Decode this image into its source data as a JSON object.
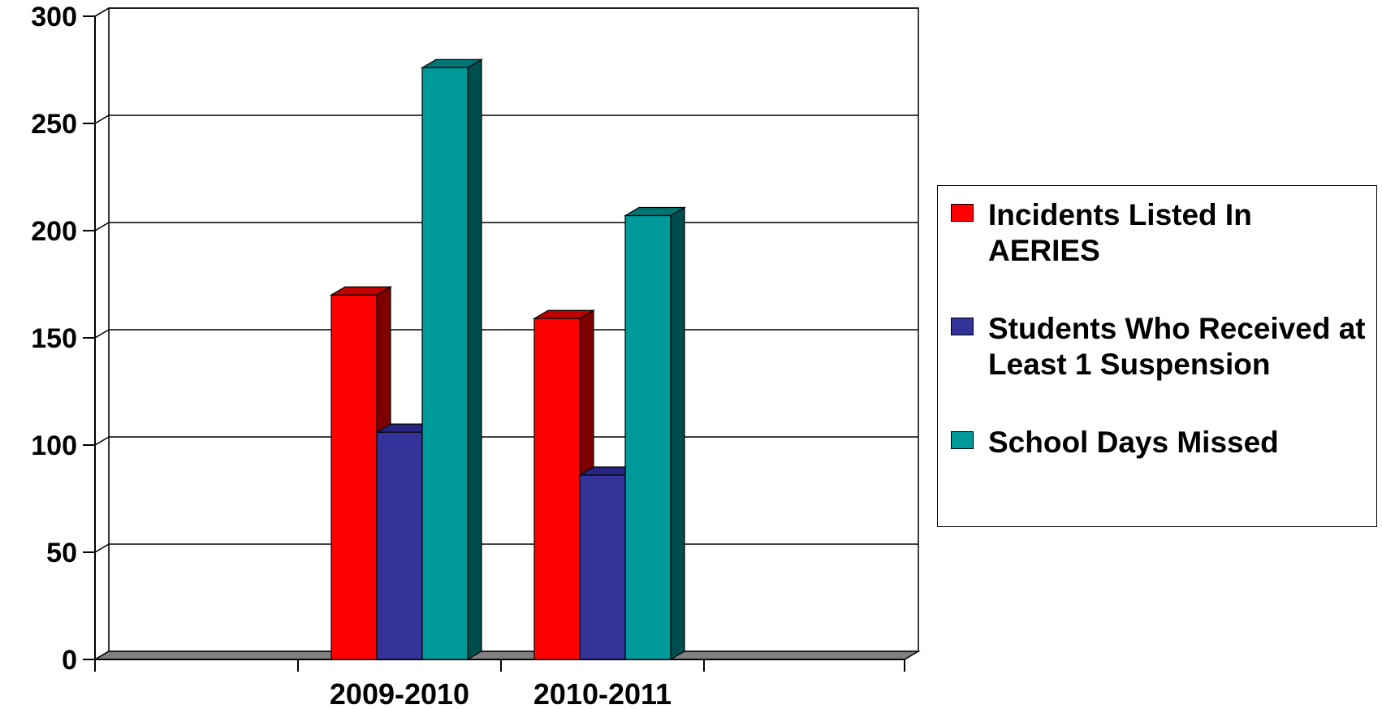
{
  "chart_data": {
    "type": "bar",
    "categories": [
      "2009-2010",
      "2010-2011"
    ],
    "series": [
      {
        "name": "Incidents Listed In AERIES",
        "values": [
          170,
          159
        ],
        "color": "#ff0000",
        "side": "#800000",
        "top": "#c00000"
      },
      {
        "name": "Students Who Received at Least 1 Suspension",
        "values": [
          106,
          86
        ],
        "color": "#333399",
        "side": "#1a1a66",
        "top": "#262680"
      },
      {
        "name": "School Days Missed",
        "values": [
          276,
          207
        ],
        "color": "#009999",
        "side": "#004d4d",
        "top": "#007373"
      }
    ],
    "yticks": [
      0,
      50,
      100,
      150,
      200,
      250,
      300
    ],
    "ylim": [
      0,
      300
    ],
    "grid": true,
    "legend_position": "right",
    "three_d": true
  }
}
